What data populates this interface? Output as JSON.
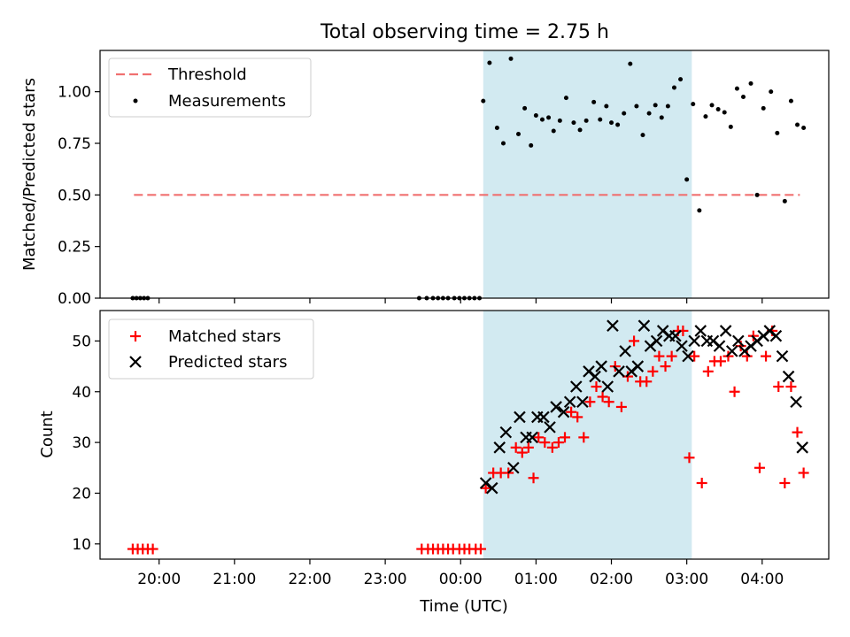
{
  "chart_data": [
    {
      "type": "scatter",
      "title": "Total observing time = 2.75 h",
      "xlabel": "",
      "ylabel": "Matched/Predicted stars",
      "ylim": [
        0.0,
        1.2
      ],
      "xlim": [
        "19:13",
        "04:53"
      ],
      "x_unit": "Time (UTC)",
      "y_ticks": [
        "0.00",
        "0.25",
        "0.50",
        "0.75",
        "1.00"
      ],
      "shaded_interval": {
        "start": "00:18",
        "end": "03:04",
        "color": "#add8e6"
      },
      "legend": {
        "position": "top-left",
        "entries": [
          "Threshold",
          "Measurements"
        ]
      },
      "threshold": {
        "name": "Threshold",
        "value": 0.5,
        "x_start": "19:40",
        "x_end": "04:30",
        "color": "#f07070",
        "style": "dashed"
      },
      "series": [
        {
          "name": "Measurements",
          "color": "#000000",
          "marker": "dot",
          "points": [
            [
              "19:39",
              0.0
            ],
            [
              "19:42",
              0.0
            ],
            [
              "19:45",
              0.0
            ],
            [
              "19:48",
              0.0
            ],
            [
              "19:51",
              0.0
            ],
            [
              "23:27",
              0.0
            ],
            [
              "23:33",
              0.0
            ],
            [
              "23:38",
              0.0
            ],
            [
              "23:42",
              0.0
            ],
            [
              "23:46",
              0.0
            ],
            [
              "23:50",
              0.0
            ],
            [
              "23:55",
              0.0
            ],
            [
              "23:59",
              0.0
            ],
            [
              "00:03",
              0.0
            ],
            [
              "00:07",
              0.0
            ],
            [
              "00:11",
              0.0
            ],
            [
              "00:15",
              0.0
            ],
            [
              "00:18",
              0.955
            ],
            [
              "00:23",
              1.14
            ],
            [
              "00:29",
              0.825
            ],
            [
              "00:34",
              0.75
            ],
            [
              "00:40",
              1.16
            ],
            [
              "00:46",
              0.795
            ],
            [
              "00:51",
              0.92
            ],
            [
              "00:56",
              0.74
            ],
            [
              "01:00",
              0.885
            ],
            [
              "01:05",
              0.865
            ],
            [
              "01:10",
              0.875
            ],
            [
              "01:14",
              0.81
            ],
            [
              "01:19",
              0.86
            ],
            [
              "01:24",
              0.97
            ],
            [
              "01:30",
              0.85
            ],
            [
              "01:35",
              0.815
            ],
            [
              "01:40",
              0.86
            ],
            [
              "01:46",
              0.95
            ],
            [
              "01:51",
              0.865
            ],
            [
              "01:56",
              0.93
            ],
            [
              "02:00",
              0.85
            ],
            [
              "02:05",
              0.84
            ],
            [
              "02:10",
              0.895
            ],
            [
              "02:15",
              1.135
            ],
            [
              "02:20",
              0.93
            ],
            [
              "02:25",
              0.79
            ],
            [
              "02:30",
              0.895
            ],
            [
              "02:35",
              0.935
            ],
            [
              "02:40",
              0.875
            ],
            [
              "02:45",
              0.93
            ],
            [
              "02:50",
              1.02
            ],
            [
              "02:55",
              1.06
            ],
            [
              "03:00",
              0.575
            ],
            [
              "03:05",
              0.94
            ],
            [
              "03:10",
              0.425
            ],
            [
              "03:15",
              0.88
            ],
            [
              "03:20",
              0.935
            ],
            [
              "03:25",
              0.915
            ],
            [
              "03:30",
              0.9
            ],
            [
              "03:35",
              0.83
            ],
            [
              "03:40",
              1.015
            ],
            [
              "03:45",
              0.975
            ],
            [
              "03:51",
              1.04
            ],
            [
              "03:56",
              0.5
            ],
            [
              "04:01",
              0.92
            ],
            [
              "04:07",
              1.0
            ],
            [
              "04:12",
              0.8
            ],
            [
              "04:18",
              0.47
            ],
            [
              "04:23",
              0.955
            ],
            [
              "04:28",
              0.84
            ],
            [
              "04:33",
              0.825
            ]
          ]
        }
      ]
    },
    {
      "type": "scatter",
      "title": "",
      "xlabel": "Time (UTC)",
      "ylabel": "Count",
      "ylim": [
        7,
        56
      ],
      "xlim": [
        "19:13",
        "04:53"
      ],
      "x_ticks": [
        "20:00",
        "21:00",
        "22:00",
        "23:00",
        "00:00",
        "01:00",
        "02:00",
        "03:00",
        "04:00"
      ],
      "y_ticks": [
        "10",
        "20",
        "30",
        "40",
        "50"
      ],
      "shaded_interval": {
        "start": "00:18",
        "end": "03:04",
        "color": "#add8e6"
      },
      "legend": {
        "position": "top-left",
        "entries": [
          "Matched stars",
          "Predicted stars"
        ]
      },
      "series": [
        {
          "name": "Matched stars",
          "color": "#ff0000",
          "marker": "plus",
          "points": [
            [
              "19:39",
              9
            ],
            [
              "19:43",
              9
            ],
            [
              "19:47",
              9
            ],
            [
              "19:51",
              9
            ],
            [
              "19:55",
              9
            ],
            [
              "23:29",
              9
            ],
            [
              "23:34",
              9
            ],
            [
              "23:38",
              9
            ],
            [
              "23:42",
              9
            ],
            [
              "23:46",
              9
            ],
            [
              "23:50",
              9
            ],
            [
              "23:54",
              9
            ],
            [
              "23:59",
              9
            ],
            [
              "00:03",
              9
            ],
            [
              "00:07",
              9
            ],
            [
              "00:12",
              9
            ],
            [
              "00:16",
              9
            ],
            [
              "00:20",
              21
            ],
            [
              "00:26",
              24
            ],
            [
              "00:32",
              24
            ],
            [
              "00:38",
              24
            ],
            [
              "00:44",
              29
            ],
            [
              "00:49",
              28
            ],
            [
              "00:54",
              29
            ],
            [
              "00:58",
              23
            ],
            [
              "01:02",
              31
            ],
            [
              "01:07",
              30
            ],
            [
              "01:13",
              29
            ],
            [
              "01:18",
              30
            ],
            [
              "01:23",
              31
            ],
            [
              "01:28",
              36
            ],
            [
              "01:33",
              35
            ],
            [
              "01:38",
              31
            ],
            [
              "01:43",
              38
            ],
            [
              "01:48",
              41
            ],
            [
              "01:53",
              39
            ],
            [
              "01:58",
              38
            ],
            [
              "02:03",
              45
            ],
            [
              "02:08",
              37
            ],
            [
              "02:13",
              43
            ],
            [
              "02:18",
              50
            ],
            [
              "02:23",
              42
            ],
            [
              "02:28",
              42
            ],
            [
              "02:33",
              44
            ],
            [
              "02:38",
              47
            ],
            [
              "02:43",
              45
            ],
            [
              "02:48",
              47
            ],
            [
              "02:53",
              52
            ],
            [
              "02:57",
              52
            ],
            [
              "03:02",
              27
            ],
            [
              "03:06",
              47
            ],
            [
              "03:12",
              22
            ],
            [
              "03:17",
              44
            ],
            [
              "03:22",
              46
            ],
            [
              "03:27",
              46
            ],
            [
              "03:33",
              47
            ],
            [
              "03:38",
              40
            ],
            [
              "03:43",
              49
            ],
            [
              "03:48",
              47
            ],
            [
              "03:53",
              51
            ],
            [
              "03:58",
              25
            ],
            [
              "04:03",
              47
            ],
            [
              "04:08",
              52
            ],
            [
              "04:13",
              41
            ],
            [
              "04:18",
              22
            ],
            [
              "04:23",
              41
            ],
            [
              "04:28",
              32
            ],
            [
              "04:33",
              24
            ]
          ]
        },
        {
          "name": "Predicted stars",
          "color": "#000000",
          "marker": "x",
          "points": [
            [
              "00:20",
              22
            ],
            [
              "00:25",
              21
            ],
            [
              "00:31",
              29
            ],
            [
              "00:36",
              32
            ],
            [
              "00:42",
              25
            ],
            [
              "00:47",
              35
            ],
            [
              "00:52",
              31
            ],
            [
              "00:57",
              31
            ],
            [
              "01:01",
              35
            ],
            [
              "01:06",
              35
            ],
            [
              "01:11",
              33
            ],
            [
              "01:16",
              37
            ],
            [
              "01:22",
              36
            ],
            [
              "01:27",
              38
            ],
            [
              "01:32",
              41
            ],
            [
              "01:37",
              38
            ],
            [
              "01:42",
              44
            ],
            [
              "01:47",
              43
            ],
            [
              "01:52",
              45
            ],
            [
              "01:57",
              41
            ],
            [
              "02:01",
              53
            ],
            [
              "02:06",
              44
            ],
            [
              "02:11",
              48
            ],
            [
              "02:16",
              44
            ],
            [
              "02:21",
              45
            ],
            [
              "02:26",
              53
            ],
            [
              "02:31",
              49
            ],
            [
              "02:36",
              50
            ],
            [
              "02:41",
              52
            ],
            [
              "02:46",
              51
            ],
            [
              "02:51",
              51
            ],
            [
              "02:56",
              49
            ],
            [
              "03:01",
              47
            ],
            [
              "03:06",
              50
            ],
            [
              "03:11",
              52
            ],
            [
              "03:16",
              50
            ],
            [
              "03:21",
              50
            ],
            [
              "03:26",
              49
            ],
            [
              "03:31",
              52
            ],
            [
              "03:36",
              48
            ],
            [
              "03:41",
              50
            ],
            [
              "03:46",
              48
            ],
            [
              "03:51",
              49
            ],
            [
              "03:56",
              50
            ],
            [
              "04:01",
              51
            ],
            [
              "04:06",
              52
            ],
            [
              "04:11",
              51
            ],
            [
              "04:16",
              47
            ],
            [
              "04:21",
              43
            ],
            [
              "04:27",
              38
            ],
            [
              "04:32",
              29
            ]
          ]
        }
      ]
    }
  ]
}
